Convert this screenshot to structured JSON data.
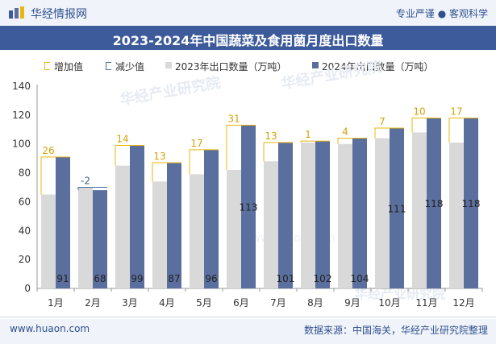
{
  "header": {
    "brand": "华经情报网",
    "slogan": "专业严谨 ● 客观科学"
  },
  "chart_data": {
    "type": "bar",
    "title": "2023-2024年中国蔬菜及食用菌月度出口数量",
    "categories": [
      "1月",
      "2月",
      "3月",
      "4月",
      "5月",
      "6月",
      "7月",
      "8月",
      "9月",
      "10月",
      "11月",
      "12月"
    ],
    "series": [
      {
        "name": "2023年出口数量（万吨）",
        "values": [
          65,
          70,
          85,
          74,
          79,
          82,
          88,
          101,
          100,
          104,
          108,
          101
        ]
      },
      {
        "name": "2024年出口数量（万吨）",
        "values": [
          91,
          68,
          99,
          87,
          96,
          113,
          101,
          102,
          104,
          111,
          118,
          118
        ]
      }
    ],
    "difference": {
      "increase_label": "增加值",
      "decrease_label": "减少值",
      "values": [
        26,
        -2,
        14,
        13,
        17,
        31,
        13,
        1,
        4,
        7,
        10,
        17
      ]
    },
    "ylim": [
      0,
      140
    ],
    "yticks": [
      0,
      20,
      40,
      60,
      80,
      100,
      120,
      140
    ],
    "xlabel": "",
    "ylabel": "",
    "watermark": "华经产业研究院",
    "watermark_url": "www.huaon.com"
  },
  "colors": {
    "bar2023": "#d9d9d9",
    "bar2024": "#5b6f9e",
    "increase": "#e8b710",
    "decrease": "#4a6fa5",
    "title_bg": "#3d5a9a"
  },
  "footer": {
    "website": "www.huaon.com",
    "source": "数据来源：中国海关，华经产业研究院整理"
  }
}
